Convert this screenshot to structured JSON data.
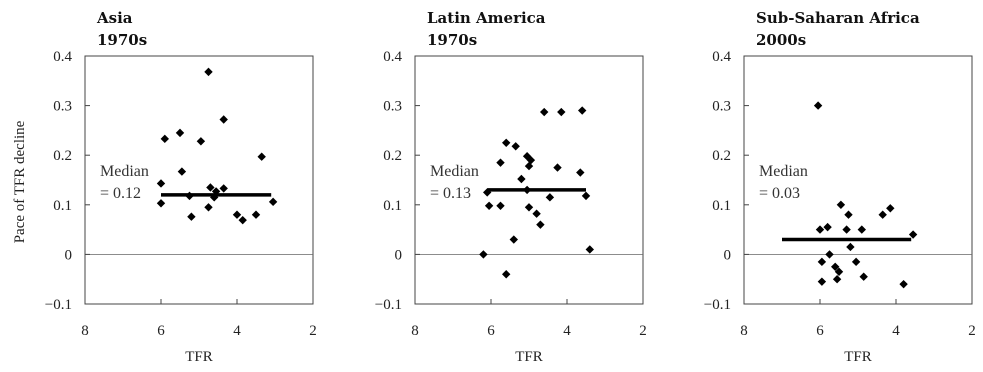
{
  "ylabel": "Pace of TFR decline",
  "chart_data": [
    {
      "type": "scatter",
      "title": "Asia",
      "subtitle": "1970s",
      "xlabel": "TFR",
      "xlim": [
        8,
        2
      ],
      "ylim": [
        -0.1,
        0.4
      ],
      "xticks": [
        8,
        6,
        4,
        2
      ],
      "yticks": [
        0.4,
        0.3,
        0.2,
        0.1,
        0,
        -0.1
      ],
      "ytick_labels": [
        "0.4",
        "0.3",
        "0.2",
        "0.1",
        "0",
        "−0.1"
      ],
      "median_label": [
        "Median",
        "= 0.12"
      ],
      "median": {
        "value": 0.12,
        "x_range": [
          6.0,
          3.1
        ]
      },
      "points": [
        {
          "x": 6.0,
          "y": 0.143
        },
        {
          "x": 5.9,
          "y": 0.233
        },
        {
          "x": 6.0,
          "y": 0.103
        },
        {
          "x": 5.5,
          "y": 0.245
        },
        {
          "x": 5.45,
          "y": 0.167
        },
        {
          "x": 5.25,
          "y": 0.118
        },
        {
          "x": 5.2,
          "y": 0.076
        },
        {
          "x": 4.95,
          "y": 0.228
        },
        {
          "x": 4.75,
          "y": 0.368
        },
        {
          "x": 4.7,
          "y": 0.135
        },
        {
          "x": 4.75,
          "y": 0.095
        },
        {
          "x": 4.6,
          "y": 0.115
        },
        {
          "x": 4.55,
          "y": 0.127
        },
        {
          "x": 4.35,
          "y": 0.272
        },
        {
          "x": 4.35,
          "y": 0.133
        },
        {
          "x": 4.0,
          "y": 0.08
        },
        {
          "x": 3.85,
          "y": 0.069
        },
        {
          "x": 3.5,
          "y": 0.08
        },
        {
          "x": 3.35,
          "y": 0.197
        },
        {
          "x": 3.05,
          "y": 0.106
        }
      ]
    },
    {
      "type": "scatter",
      "title": "Latin America",
      "subtitle": "1970s",
      "xlabel": "TFR",
      "xlim": [
        8,
        2
      ],
      "ylim": [
        -0.1,
        0.4
      ],
      "xticks": [
        8,
        6,
        4,
        2
      ],
      "yticks": [
        0.4,
        0.3,
        0.2,
        0.1,
        0,
        -0.1
      ],
      "ytick_labels": [
        "0.4",
        "0.3",
        "0.2",
        "0.1",
        "0",
        "−0.1"
      ],
      "median_label": [
        "Median",
        "= 0.13"
      ],
      "median": {
        "value": 0.13,
        "x_range": [
          6.1,
          3.5
        ]
      },
      "points": [
        {
          "x": 6.2,
          "y": 0.0
        },
        {
          "x": 6.1,
          "y": 0.125
        },
        {
          "x": 6.05,
          "y": 0.098
        },
        {
          "x": 5.75,
          "y": 0.098
        },
        {
          "x": 5.75,
          "y": 0.185
        },
        {
          "x": 5.6,
          "y": 0.225
        },
        {
          "x": 5.6,
          "y": -0.04
        },
        {
          "x": 5.4,
          "y": 0.03
        },
        {
          "x": 5.35,
          "y": 0.218
        },
        {
          "x": 5.2,
          "y": 0.152
        },
        {
          "x": 5.05,
          "y": 0.198
        },
        {
          "x": 5.05,
          "y": 0.13
        },
        {
          "x": 4.95,
          "y": 0.19
        },
        {
          "x": 5.0,
          "y": 0.178
        },
        {
          "x": 5.0,
          "y": 0.095
        },
        {
          "x": 4.8,
          "y": 0.082
        },
        {
          "x": 4.7,
          "y": 0.06
        },
        {
          "x": 4.6,
          "y": 0.287
        },
        {
          "x": 4.45,
          "y": 0.115
        },
        {
          "x": 4.25,
          "y": 0.175
        },
        {
          "x": 4.15,
          "y": 0.287
        },
        {
          "x": 3.65,
          "y": 0.165
        },
        {
          "x": 3.6,
          "y": 0.29
        },
        {
          "x": 3.5,
          "y": 0.118
        },
        {
          "x": 3.4,
          "y": 0.01
        }
      ]
    },
    {
      "type": "scatter",
      "title": "Sub-Saharan Africa",
      "subtitle": "2000s",
      "xlabel": "TFR",
      "xlim": [
        8,
        2
      ],
      "ylim": [
        -0.1,
        0.4
      ],
      "xticks": [
        8,
        6,
        4,
        2
      ],
      "yticks": [
        0.4,
        0.3,
        0.2,
        0.1,
        0,
        -0.1
      ],
      "ytick_labels": [
        "0.4",
        "0.3",
        "0.2",
        "0.1",
        "0",
        "−0.1"
      ],
      "median_label": [
        "Median",
        "= 0.03"
      ],
      "median": {
        "value": 0.03,
        "x_range": [
          7.0,
          3.6
        ]
      },
      "points": [
        {
          "x": 6.05,
          "y": 0.3
        },
        {
          "x": 6.0,
          "y": 0.05
        },
        {
          "x": 5.95,
          "y": -0.015
        },
        {
          "x": 5.95,
          "y": -0.055
        },
        {
          "x": 5.8,
          "y": 0.055
        },
        {
          "x": 5.75,
          "y": 0.0
        },
        {
          "x": 5.6,
          "y": -0.025
        },
        {
          "x": 5.55,
          "y": -0.05
        },
        {
          "x": 5.5,
          "y": -0.035
        },
        {
          "x": 5.45,
          "y": 0.1
        },
        {
          "x": 5.3,
          "y": 0.05
        },
        {
          "x": 5.25,
          "y": 0.08
        },
        {
          "x": 5.2,
          "y": 0.015
        },
        {
          "x": 5.05,
          "y": -0.015
        },
        {
          "x": 4.9,
          "y": 0.05
        },
        {
          "x": 4.85,
          "y": -0.045
        },
        {
          "x": 4.35,
          "y": 0.08
        },
        {
          "x": 4.15,
          "y": 0.093
        },
        {
          "x": 3.8,
          "y": -0.06
        },
        {
          "x": 3.55,
          "y": 0.04
        }
      ]
    }
  ]
}
